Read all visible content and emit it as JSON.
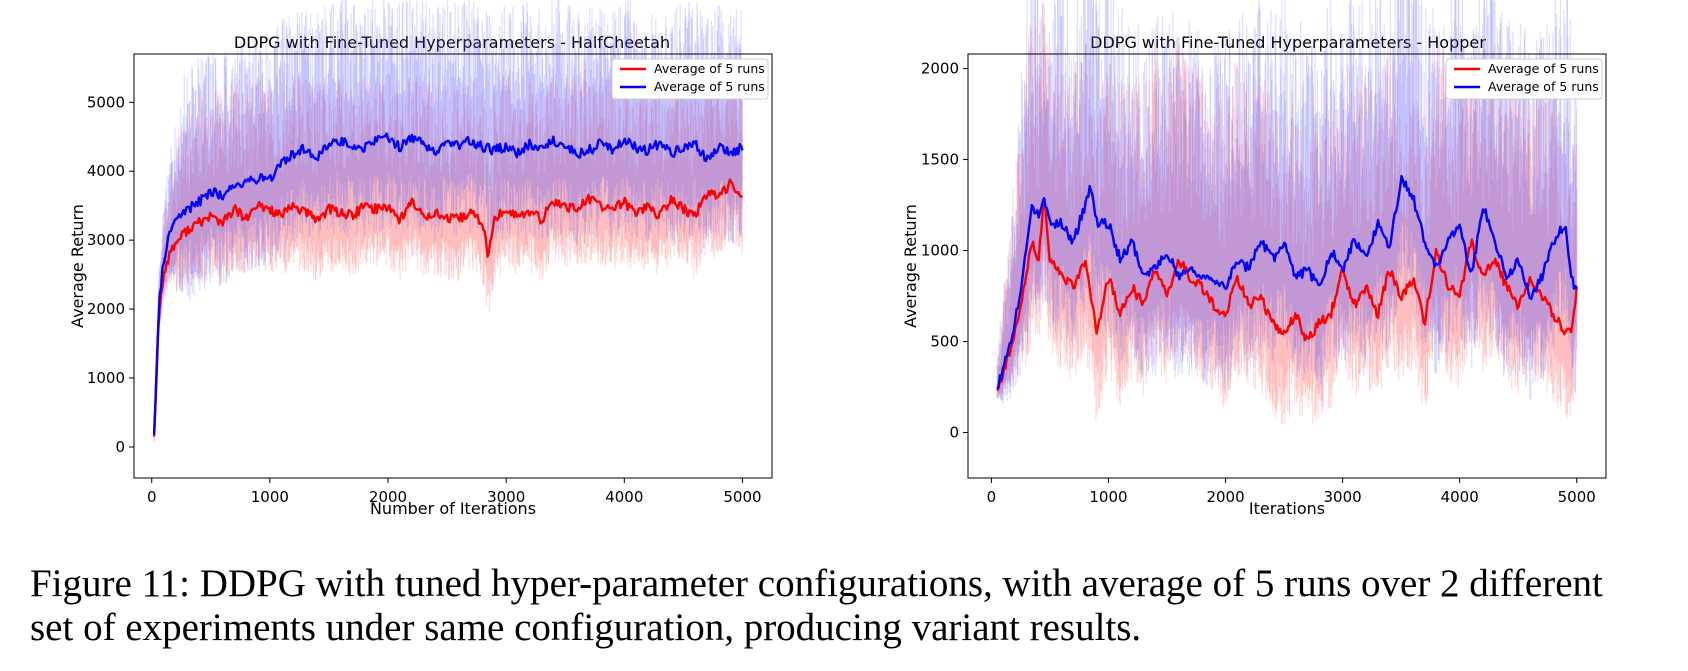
{
  "chart_data": [
    {
      "type": "line",
      "title": "DDPG with Fine-Tuned Hyperparameters - HalfCheetah",
      "xlabel": "Number of Iterations",
      "ylabel": "Average Return",
      "xlim": [
        -150,
        5250
      ],
      "ylim": [
        -450,
        5700
      ],
      "xticks": [
        0,
        1000,
        2000,
        3000,
        4000,
        5000
      ],
      "yticks": [
        0,
        1000,
        2000,
        3000,
        4000,
        5000
      ],
      "legend_position": "upper right",
      "grid": false,
      "series": [
        {
          "name": "Average of 5 runs",
          "color": "#ff0000",
          "x": [
            20,
            60,
            100,
            150,
            200,
            300,
            400,
            500,
            600,
            700,
            800,
            900,
            1000,
            1100,
            1200,
            1300,
            1400,
            1500,
            1600,
            1700,
            1800,
            1900,
            2000,
            2100,
            2200,
            2300,
            2400,
            2500,
            2600,
            2700,
            2800,
            2850,
            2900,
            3000,
            3100,
            3200,
            3300,
            3400,
            3500,
            3600,
            3700,
            3800,
            3900,
            4000,
            4100,
            4200,
            4300,
            4400,
            4500,
            4600,
            4700,
            4800,
            4900,
            5000
          ],
          "values": [
            150,
            1900,
            2500,
            2800,
            2950,
            3150,
            3250,
            3350,
            3250,
            3450,
            3300,
            3500,
            3450,
            3350,
            3500,
            3400,
            3300,
            3450,
            3400,
            3350,
            3500,
            3450,
            3500,
            3300,
            3550,
            3350,
            3400,
            3300,
            3300,
            3400,
            3250,
            2750,
            3300,
            3450,
            3350,
            3400,
            3300,
            3550,
            3500,
            3450,
            3600,
            3500,
            3450,
            3550,
            3400,
            3500,
            3350,
            3600,
            3450,
            3350,
            3700,
            3600,
            3850,
            3650
          ],
          "band": [
            600,
            1400
          ]
        },
        {
          "name": "Average of 5 runs",
          "color": "#0000ff",
          "x": [
            20,
            60,
            100,
            150,
            200,
            300,
            400,
            500,
            600,
            700,
            800,
            900,
            1000,
            1100,
            1200,
            1300,
            1400,
            1500,
            1600,
            1700,
            1800,
            1900,
            2000,
            2100,
            2200,
            2300,
            2400,
            2500,
            2600,
            2700,
            2800,
            2900,
            3000,
            3100,
            3200,
            3300,
            3400,
            3500,
            3600,
            3700,
            3800,
            3900,
            4000,
            4100,
            4200,
            4300,
            4400,
            4500,
            4600,
            4700,
            4800,
            4900,
            5000
          ],
          "values": [
            180,
            2000,
            2700,
            3100,
            3300,
            3450,
            3550,
            3700,
            3650,
            3800,
            3850,
            3900,
            3900,
            4100,
            4250,
            4350,
            4200,
            4400,
            4450,
            4350,
            4350,
            4450,
            4500,
            4350,
            4500,
            4400,
            4300,
            4450,
            4350,
            4450,
            4350,
            4300,
            4350,
            4250,
            4400,
            4300,
            4450,
            4350,
            4250,
            4300,
            4400,
            4300,
            4450,
            4350,
            4300,
            4400,
            4250,
            4350,
            4400,
            4150,
            4350,
            4250,
            4350
          ],
          "band": [
            900,
            1500
          ]
        }
      ]
    },
    {
      "type": "line",
      "title": "DDPG with Fine-Tuned Hyperparameters - Hopper",
      "xlabel": "Iterations",
      "ylabel": "Average Return",
      "xlim": [
        -200,
        5250
      ],
      "ylim": [
        -250,
        2080
      ],
      "xticks": [
        0,
        1000,
        2000,
        3000,
        4000,
        5000
      ],
      "yticks": [
        0,
        500,
        1000,
        1500,
        2000
      ],
      "legend_position": "upper right",
      "grid": false,
      "series": [
        {
          "name": "Average of 5 runs",
          "color": "#ff0000",
          "x": [
            50,
            150,
            250,
            350,
            400,
            450,
            500,
            600,
            700,
            800,
            900,
            1000,
            1100,
            1200,
            1300,
            1400,
            1500,
            1600,
            1700,
            1800,
            1900,
            2000,
            2100,
            2200,
            2300,
            2400,
            2500,
            2600,
            2700,
            2800,
            2900,
            3000,
            3100,
            3200,
            3300,
            3400,
            3500,
            3600,
            3700,
            3800,
            3900,
            4000,
            4100,
            4200,
            4300,
            4400,
            4500,
            4600,
            4700,
            4800,
            4900,
            4950,
            5000
          ],
          "values": [
            230,
            420,
            700,
            1050,
            950,
            1280,
            950,
            850,
            800,
            950,
            550,
            850,
            650,
            800,
            700,
            900,
            750,
            950,
            850,
            800,
            700,
            650,
            850,
            700,
            750,
            600,
            550,
            650,
            500,
            600,
            650,
            900,
            700,
            800,
            650,
            900,
            750,
            850,
            600,
            1000,
            800,
            750,
            1050,
            850,
            950,
            800,
            700,
            850,
            750,
            650,
            550,
            560,
            780
          ],
          "band": [
            350,
            900
          ]
        },
        {
          "name": "Average of 5 runs",
          "color": "#0000ff",
          "x": [
            50,
            150,
            250,
            350,
            400,
            450,
            500,
            600,
            700,
            800,
            850,
            900,
            1000,
            1100,
            1200,
            1300,
            1400,
            1500,
            1600,
            1700,
            1800,
            1900,
            2000,
            2100,
            2200,
            2300,
            2400,
            2500,
            2600,
            2700,
            2800,
            2900,
            3000,
            3100,
            3200,
            3300,
            3400,
            3500,
            3600,
            3700,
            3800,
            3900,
            4000,
            4100,
            4200,
            4300,
            4400,
            4500,
            4600,
            4700,
            4800,
            4900,
            4950,
            5000
          ],
          "values": [
            240,
            450,
            780,
            1250,
            1200,
            1300,
            1150,
            1150,
            1050,
            1250,
            1350,
            1150,
            1150,
            950,
            1050,
            850,
            900,
            1000,
            850,
            900,
            850,
            850,
            800,
            950,
            900,
            1050,
            950,
            1050,
            850,
            900,
            800,
            1000,
            900,
            1050,
            950,
            1150,
            1000,
            1400,
            1300,
            1050,
            900,
            1050,
            1150,
            850,
            1250,
            1050,
            850,
            950,
            750,
            850,
            1050,
            1150,
            850,
            780
          ],
          "band": [
            400,
            1000
          ]
        }
      ]
    }
  ],
  "caption": {
    "line1": "Figure 11: DDPG with tuned hyper-parameter configurations, with average of 5 runs over 2 different",
    "line2": "set of experiments under same configuration, producing variant results."
  }
}
